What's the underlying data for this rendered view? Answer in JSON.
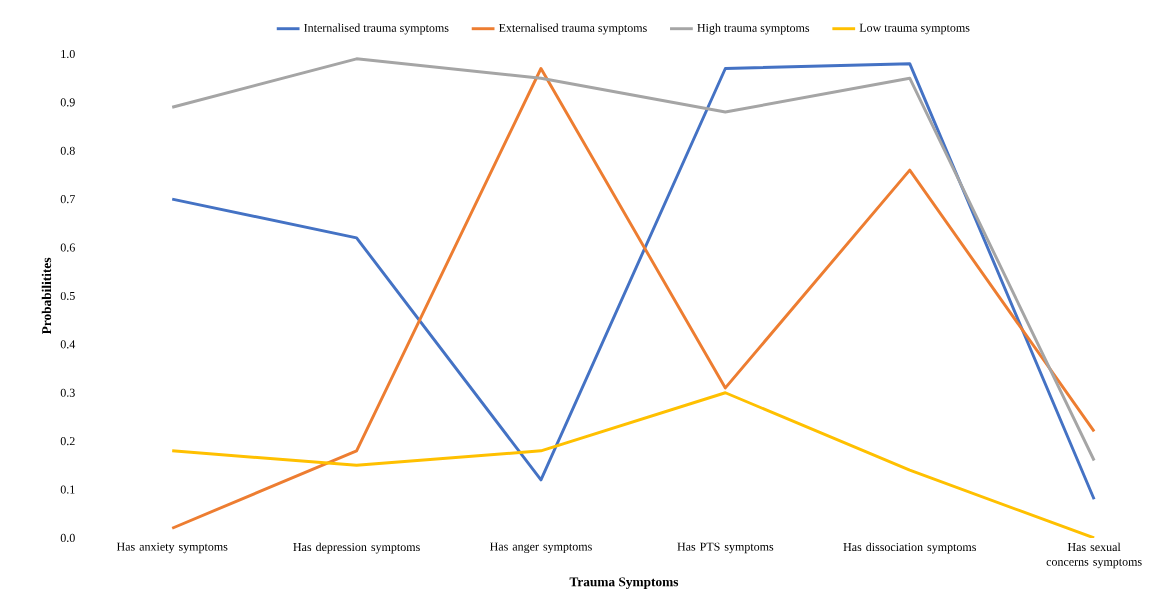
{
  "chart_data": {
    "type": "line",
    "xlabel": "Trauma Symptoms",
    "ylabel": "Probabilitites",
    "categories": [
      "Has anxiety symptoms",
      "Has depression symptoms",
      "Has anger symptoms",
      "Has PTS symptoms",
      "Has dissociation symptoms",
      "Has sexual concerns symptoms"
    ],
    "series": [
      {
        "name": "Internalised trauma symptoms",
        "color": "#4472c4",
        "values": [
          0.7,
          0.62,
          0.12,
          0.97,
          0.98,
          0.08
        ]
      },
      {
        "name": "Externalised trauma symptoms",
        "color": "#ed7d31",
        "values": [
          0.02,
          0.18,
          0.97,
          0.31,
          0.76,
          0.22
        ]
      },
      {
        "name": "High trauma symptoms",
        "color": "#a5a5a5",
        "values": [
          0.89,
          0.99,
          0.95,
          0.88,
          0.95,
          0.16
        ]
      },
      {
        "name": "Low trauma symptoms",
        "color": "#ffc000",
        "values": [
          0.18,
          0.15,
          0.18,
          0.3,
          0.14,
          0.0
        ]
      }
    ],
    "ylim": [
      0,
      1
    ],
    "yticks": [
      {
        "value": 0,
        "label": "0.0"
      },
      {
        "value": 0.1,
        "label": "0.1"
      },
      {
        "value": 0.2,
        "label": "0.2"
      },
      {
        "value": 0.3,
        "label": "0.3"
      },
      {
        "value": 0.4,
        "label": "0.4"
      },
      {
        "value": 0.5,
        "label": "0.5"
      },
      {
        "value": 0.6,
        "label": "0.6"
      },
      {
        "value": 0.7,
        "label": "0.7"
      },
      {
        "value": 0.8,
        "label": "0.8"
      },
      {
        "value": 0.9,
        "label": "0.9"
      },
      {
        "value": 1.0,
        "label": "1.0"
      }
    ],
    "grid": false,
    "legend": "top",
    "marker": "none",
    "line_style": "solid"
  }
}
